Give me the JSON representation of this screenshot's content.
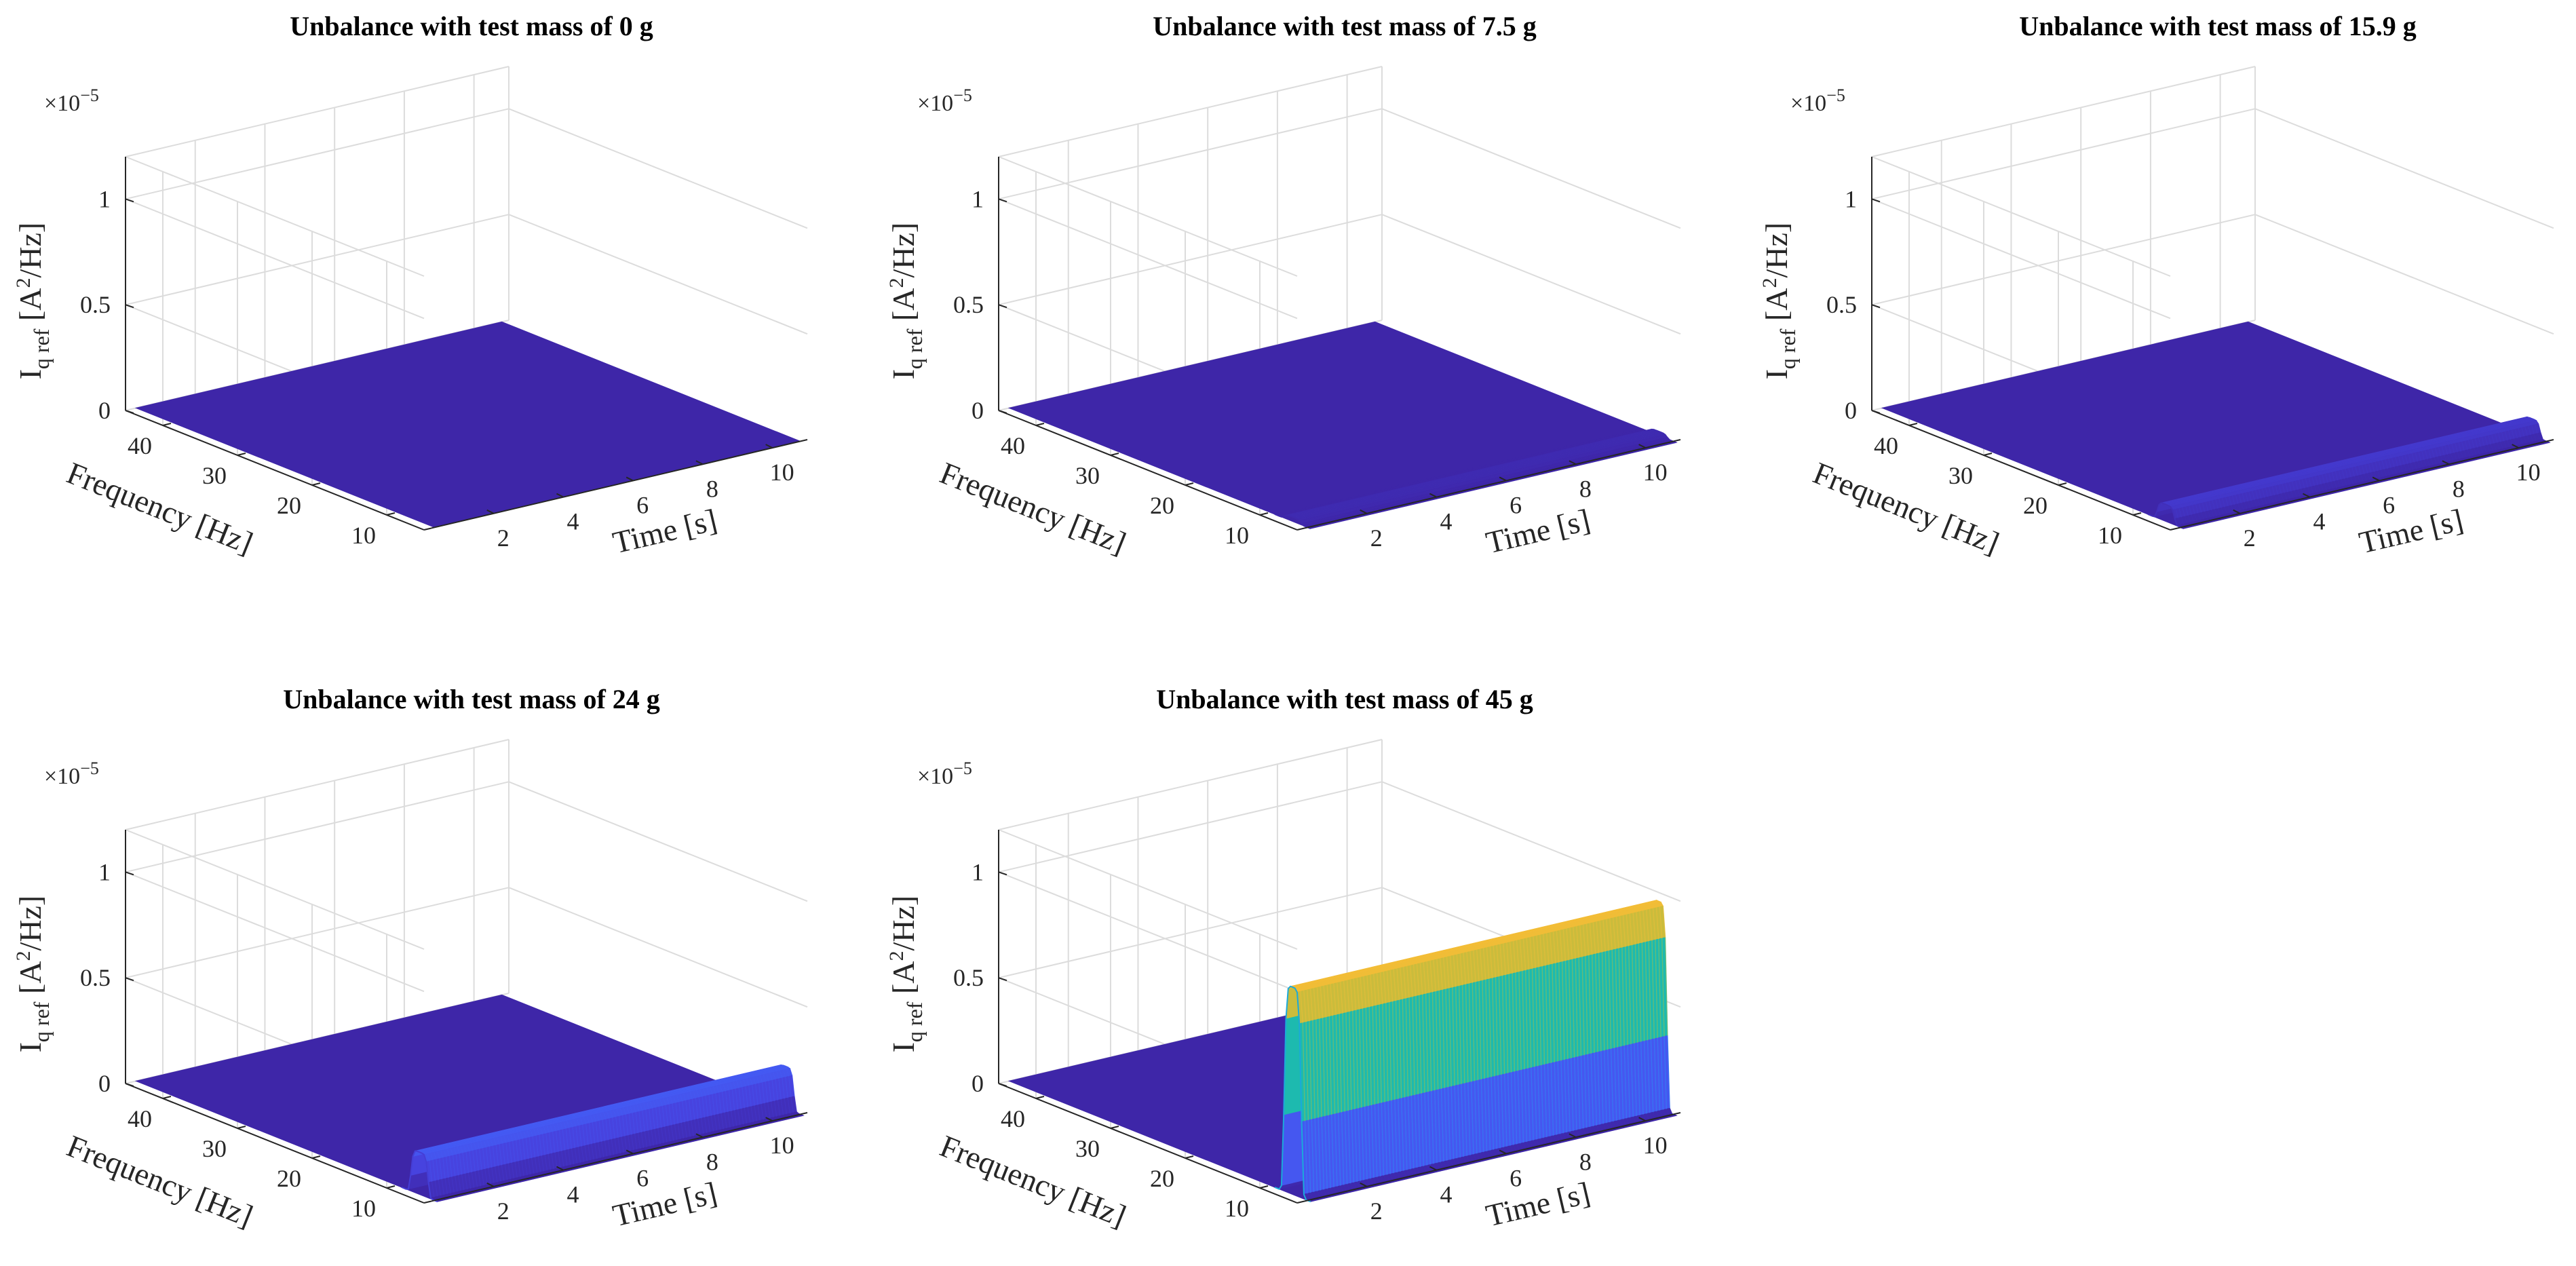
{
  "figure": {
    "colormap": [
      "#3e26a8",
      "#4743e0",
      "#4367fd",
      "#2f8bf3",
      "#1ba9da",
      "#1ebda6",
      "#5ac56d",
      "#b8bc3e",
      "#f3bd37",
      "#f9d328"
    ]
  },
  "chart_data": [
    {
      "type": "surface",
      "title": "Unbalance with test mass of 0 g",
      "xlabel": "Time [s]",
      "ylabel": "Frequency [Hz]",
      "zlabel": {
        "main": "I",
        "sub": "q ref",
        "unit_pre": "[A",
        "unit_sup": "2",
        "unit_post": "/Hz]"
      },
      "z_exponent": {
        "base": "×10",
        "power": "−5"
      },
      "xlim": [
        0,
        11
      ],
      "ylim": [
        5,
        45
      ],
      "zlim": [
        0,
        1.2
      ],
      "x_ticks": [
        "2",
        "4",
        "6",
        "8",
        "10"
      ],
      "y_ticks": [
        "10",
        "20",
        "30",
        "40"
      ],
      "z_ticks": [
        "0",
        "0.5",
        "1"
      ],
      "peak": {
        "frequency": 7,
        "width": 1.2,
        "amplitude": 0.0,
        "t_start": 0.3,
        "t_end": 10.8
      },
      "grid": true
    },
    {
      "type": "surface",
      "title": "Unbalance with test mass of 7.5 g",
      "xlabel": "Time [s]",
      "ylabel": "Frequency [Hz]",
      "zlabel": {
        "main": "I",
        "sub": "q ref",
        "unit_pre": "[A",
        "unit_sup": "2",
        "unit_post": "/Hz]"
      },
      "z_exponent": {
        "base": "×10",
        "power": "−5"
      },
      "xlim": [
        0,
        11
      ],
      "ylim": [
        5,
        45
      ],
      "zlim": [
        0,
        1.2
      ],
      "x_ticks": [
        "2",
        "4",
        "6",
        "8",
        "10"
      ],
      "y_ticks": [
        "10",
        "20",
        "30",
        "40"
      ],
      "z_ticks": [
        "0",
        "0.5",
        "1"
      ],
      "peak": {
        "frequency": 7,
        "width": 1.2,
        "amplitude": 0.02,
        "t_start": 0.3,
        "t_end": 10.8
      },
      "grid": true
    },
    {
      "type": "surface",
      "title": "Unbalance with test mass of 15.9 g",
      "xlabel": "Time [s]",
      "ylabel": "Frequency [Hz]",
      "zlabel": {
        "main": "I",
        "sub": "q ref",
        "unit_pre": "[A",
        "unit_sup": "2",
        "unit_post": "/Hz]"
      },
      "z_exponent": {
        "base": "×10",
        "power": "−5"
      },
      "xlim": [
        0,
        11
      ],
      "ylim": [
        5,
        45
      ],
      "zlim": [
        0,
        1.2
      ],
      "x_ticks": [
        "2",
        "4",
        "6",
        "8",
        "10"
      ],
      "y_ticks": [
        "10",
        "20",
        "30",
        "40"
      ],
      "z_ticks": [
        "0",
        "0.5",
        "1"
      ],
      "peak": {
        "frequency": 7,
        "width": 1.2,
        "amplitude": 0.08,
        "t_start": 0.3,
        "t_end": 10.8
      },
      "grid": true
    },
    {
      "type": "surface",
      "title": "Unbalance with test mass of 24 g",
      "xlabel": "Time [s]",
      "ylabel": "Frequency [Hz]",
      "zlabel": {
        "main": "I",
        "sub": "q ref",
        "unit_pre": "[A",
        "unit_sup": "2",
        "unit_post": "/Hz]"
      },
      "z_exponent": {
        "base": "×10",
        "power": "−5"
      },
      "xlim": [
        0,
        11
      ],
      "ylim": [
        5,
        45
      ],
      "zlim": [
        0,
        1.2
      ],
      "x_ticks": [
        "2",
        "4",
        "6",
        "8",
        "10"
      ],
      "y_ticks": [
        "10",
        "20",
        "30",
        "40"
      ],
      "z_ticks": [
        "0",
        "0.5",
        "1"
      ],
      "peak": {
        "frequency": 7,
        "width": 1.2,
        "amplitude": 0.2,
        "t_start": 0.3,
        "t_end": 10.8
      },
      "grid": true
    },
    {
      "type": "surface",
      "title": "Unbalance with test mass of 45 g",
      "xlabel": "Time [s]",
      "ylabel": "Frequency [Hz]",
      "zlabel": {
        "main": "I",
        "sub": "q ref",
        "unit_pre": "[A",
        "unit_sup": "2",
        "unit_post": "/Hz]"
      },
      "z_exponent": {
        "base": "×10",
        "power": "−5"
      },
      "xlim": [
        0,
        11
      ],
      "ylim": [
        5,
        45
      ],
      "zlim": [
        0,
        1.2
      ],
      "x_ticks": [
        "2",
        "4",
        "6",
        "8",
        "10"
      ],
      "y_ticks": [
        "10",
        "20",
        "30",
        "40"
      ],
      "z_ticks": [
        "0",
        "0.5",
        "1"
      ],
      "peak": {
        "frequency": 7,
        "width": 1.2,
        "amplitude": 0.98,
        "t_start": 0.3,
        "t_end": 10.8
      },
      "grid": true
    }
  ]
}
